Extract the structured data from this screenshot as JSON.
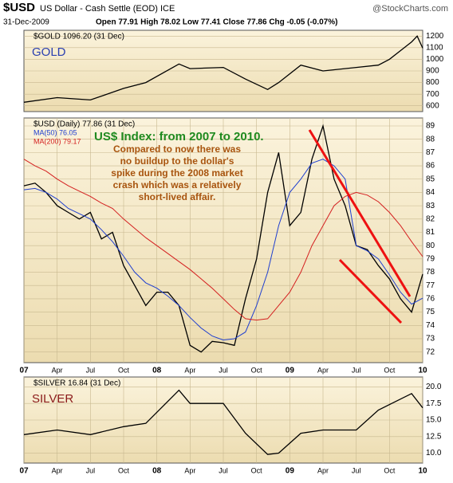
{
  "header": {
    "symbol": "$USD",
    "name": "US Dollar - Cash Settle (EOD) ICE",
    "source": "@StockCharts.com",
    "date": "31-Dec-2009",
    "quote": "Open 77.91  High 78.02  Low 77.41  Close 77.86  Chg -0.05 (-0.07%)"
  },
  "chart_data": [
    {
      "type": "line",
      "legend_title": "$GOLD 1096.20 (31 Dec)",
      "label": "GOLD",
      "x": [
        0,
        3,
        6,
        9,
        11,
        14,
        15,
        18,
        20,
        22,
        23,
        25,
        27,
        30,
        32,
        33,
        35,
        35.5,
        36
      ],
      "series": [
        {
          "color": "#000000",
          "values": [
            630,
            670,
            650,
            750,
            800,
            960,
            920,
            930,
            830,
            740,
            800,
            950,
            900,
            930,
            950,
            1000,
            1150,
            1200,
            1096
          ]
        }
      ],
      "xlim": [
        0,
        36
      ],
      "ylim": [
        550,
        1250
      ],
      "yticks": [
        600,
        700,
        800,
        900,
        1000,
        1100,
        1200
      ],
      "grid": true
    },
    {
      "type": "line",
      "legend_title": "$USD (Daily) 77.86 (31 Dec)",
      "title": "US$ Index: from 2007 to 2010.",
      "annotation": [
        "Compared to now there was",
        "no buildup to the dollar's",
        "spike during the 2008 market",
        "crash which was a relatively",
        "short-lived affair."
      ],
      "x": [
        0,
        1,
        2,
        3,
        4,
        5,
        6,
        7,
        8,
        9,
        10,
        11,
        12,
        13,
        14,
        15,
        16,
        17,
        18,
        19,
        20,
        21,
        22,
        23,
        24,
        25,
        26,
        27,
        28,
        29,
        30,
        31,
        32,
        33,
        34,
        35,
        36
      ],
      "series": [
        {
          "name": "$USD",
          "color": "#000000",
          "values": [
            84.5,
            84.7,
            84,
            83,
            82.5,
            82,
            82.5,
            80.5,
            81,
            78.5,
            77,
            75.5,
            76.5,
            76.5,
            75.5,
            72.5,
            72,
            72.8,
            72.7,
            72.5,
            76,
            79,
            84,
            87,
            81.5,
            82.5,
            86.5,
            89,
            85,
            83,
            80,
            79.7,
            78.5,
            77.5,
            76,
            75,
            77.86
          ]
        },
        {
          "name": "MA(50) 76.05",
          "color": "#1f3fcf",
          "values": [
            84.2,
            84.3,
            84,
            83.5,
            82.8,
            82.4,
            82,
            81.2,
            80.3,
            79.2,
            78,
            77.2,
            76.8,
            76.2,
            75.5,
            74.6,
            73.8,
            73.2,
            72.9,
            73,
            73.5,
            75.5,
            78,
            81.5,
            84,
            85,
            86.2,
            86.5,
            86,
            85,
            80,
            79.6,
            79,
            77.8,
            76.5,
            75.6,
            76.05
          ]
        },
        {
          "name": "MA(200) 79.17",
          "color": "#d42020",
          "values": [
            86.5,
            86,
            85.6,
            85,
            84.5,
            84.1,
            83.7,
            83.2,
            82.8,
            82,
            81.3,
            80.6,
            80,
            79.4,
            78.8,
            78.2,
            77.5,
            76.8,
            76,
            75.2,
            74.5,
            74.4,
            74.5,
            75.5,
            76.5,
            78,
            80,
            81.5,
            83,
            83.7,
            84,
            83.8,
            83.3,
            82.5,
            81.5,
            80.3,
            79.17
          ]
        }
      ],
      "xlim": [
        0,
        36
      ],
      "ylim": [
        71.2,
        89.6
      ],
      "yticks": [
        72,
        73,
        74,
        75,
        76,
        77,
        78,
        79,
        80,
        81,
        82,
        83,
        84,
        85,
        86,
        87,
        88,
        89
      ],
      "xticks": [
        {
          "value": 0,
          "label": "07"
        },
        {
          "value": 3,
          "label": "Apr"
        },
        {
          "value": 6,
          "label": "Jul"
        },
        {
          "value": 9,
          "label": "Oct"
        },
        {
          "value": 12,
          "label": "08"
        },
        {
          "value": 15,
          "label": "Apr"
        },
        {
          "value": 18,
          "label": "Jul"
        },
        {
          "value": 21,
          "label": "Oct"
        },
        {
          "value": 24,
          "label": "09"
        },
        {
          "value": 27,
          "label": "Apr"
        },
        {
          "value": 30,
          "label": "Jul"
        },
        {
          "value": 33,
          "label": "Oct"
        },
        {
          "value": 36,
          "label": "10"
        }
      ],
      "grid": true
    },
    {
      "type": "line",
      "legend_title": "$SILVER 16.84 (31 Dec)",
      "label": "SILVER",
      "x": [
        0,
        3,
        6,
        9,
        11,
        14,
        15,
        18,
        20,
        22,
        23,
        25,
        27,
        30,
        32,
        35,
        36
      ],
      "series": [
        {
          "color": "#000000",
          "values": [
            12.8,
            13.5,
            12.8,
            14,
            14.5,
            19.5,
            17.5,
            17.5,
            13,
            9.8,
            10,
            13,
            13.5,
            13.5,
            16.5,
            19,
            16.84
          ]
        }
      ],
      "xlim": [
        0,
        36
      ],
      "ylim": [
        8.5,
        21.5
      ],
      "yticks": [
        {
          "value": 10,
          "label": "10.0"
        },
        {
          "value": 12.5,
          "label": "12.5"
        },
        {
          "value": 15,
          "label": "15.0"
        },
        {
          "value": 17.5,
          "label": "17.5"
        },
        {
          "value": 20,
          "label": "20.0"
        }
      ],
      "xticks": [
        {
          "value": 0,
          "label": "07"
        },
        {
          "value": 3,
          "label": "Apr"
        },
        {
          "value": 6,
          "label": "Jul"
        },
        {
          "value": 9,
          "label": "Oct"
        },
        {
          "value": 12,
          "label": "08"
        },
        {
          "value": 15,
          "label": "Apr"
        },
        {
          "value": 18,
          "label": "Jul"
        },
        {
          "value": 21,
          "label": "Oct"
        },
        {
          "value": 24,
          "label": "09"
        },
        {
          "value": 27,
          "label": "Apr"
        },
        {
          "value": 30,
          "label": "Jul"
        },
        {
          "value": 33,
          "label": "Oct"
        },
        {
          "value": 36,
          "label": "10"
        }
      ],
      "grid": true
    }
  ]
}
